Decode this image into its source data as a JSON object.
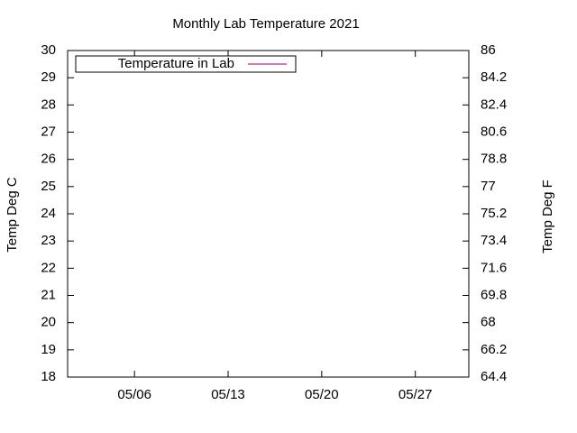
{
  "chart_data": {
    "type": "line",
    "title": "Monthly Lab Temperature 2021",
    "ylabel": "Temp Deg C",
    "y2label": "Temp Deg F",
    "x": [],
    "series": [
      {
        "name": "Temperature in Lab",
        "color": "#94007a",
        "values": []
      }
    ],
    "xlim": [
      1,
      31
    ],
    "xticks": [
      {
        "value": 6,
        "label": "05/06"
      },
      {
        "value": 13,
        "label": "05/13"
      },
      {
        "value": 20,
        "label": "05/20"
      },
      {
        "value": 27,
        "label": "05/27"
      }
    ],
    "ylim": [
      18,
      30
    ],
    "yticks": [
      18,
      19,
      20,
      21,
      22,
      23,
      24,
      25,
      26,
      27,
      28,
      29,
      30
    ],
    "y2lim": [
      64.4,
      86
    ],
    "y2ticks": [
      64.4,
      66.2,
      68,
      69.8,
      71.6,
      73.4,
      75.2,
      77,
      78.8,
      80.6,
      82.4,
      84.2,
      86
    ],
    "legend": "top-left"
  }
}
